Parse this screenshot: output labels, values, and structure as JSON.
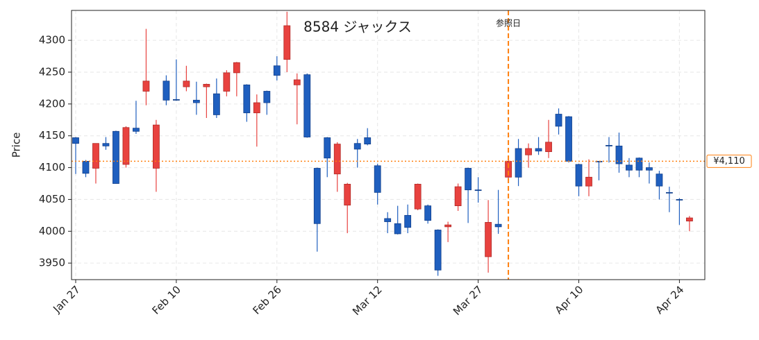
{
  "chart_data": {
    "type": "candlestick",
    "title": "8584  ジャックス",
    "y_label": "Price",
    "categories": [
      "Jan 27",
      null,
      null,
      null,
      null,
      null,
      null,
      null,
      null,
      null,
      "Feb 10",
      null,
      null,
      null,
      null,
      null,
      null,
      null,
      null,
      null,
      "Feb 26",
      null,
      null,
      null,
      null,
      null,
      null,
      null,
      null,
      null,
      "Mar 12",
      null,
      null,
      null,
      null,
      null,
      null,
      null,
      null,
      null,
      "Mar 27",
      null,
      null,
      null,
      null,
      null,
      null,
      null,
      null,
      null,
      "Apr 10",
      null,
      null,
      null,
      null,
      null,
      null,
      null,
      null,
      null,
      "Apr 24",
      null
    ],
    "open": [
      4147,
      4110,
      4099,
      4138,
      4157,
      4105,
      4162,
      4220,
      4099,
      4236,
      4207,
      4227,
      4206,
      4227,
      4216,
      4220,
      4249,
      4230,
      4186,
      4220,
      4260,
      4270,
      4230,
      4246,
      4099,
      4147,
      4090,
      4041,
      4138,
      4147,
      4103,
      4020,
      4012,
      4025,
      4035,
      4040,
      4002,
      4007,
      4040,
      4099,
      4065,
      3960,
      4011,
      4085,
      4130,
      4120,
      4130,
      4125,
      4184,
      4180,
      4105,
      4071,
      4110,
      4135,
      4134,
      4104,
      4115,
      4100,
      4090,
      4061,
      4050,
      4016
    ],
    "high": [
      4148,
      4112,
      4138,
      4148,
      4158,
      4165,
      4205,
      4318,
      4175,
      4245,
      4270,
      4260,
      4235,
      4232,
      4240,
      4253,
      4266,
      4231,
      4215,
      4221,
      4275,
      4345,
      4248,
      4248,
      4100,
      4148,
      4140,
      4076,
      4145,
      4162,
      4106,
      4030,
      4040,
      4042,
      4075,
      4042,
      4003,
      4015,
      4075,
      4100,
      4085,
      4049,
      4065,
      4112,
      4145,
      4138,
      4148,
      4175,
      4193,
      4181,
      4106,
      4113,
      4110,
      4148,
      4155,
      4115,
      4116,
      4108,
      4095,
      4070,
      4052,
      4024
    ],
    "low": [
      4090,
      4085,
      4075,
      4128,
      4075,
      4100,
      4153,
      4198,
      4062,
      4198,
      4205,
      4220,
      4183,
      4178,
      4178,
      4212,
      4212,
      4172,
      4133,
      4183,
      4237,
      4250,
      4168,
      4147,
      3968,
      4085,
      4062,
      3997,
      4100,
      4135,
      4042,
      3997,
      3995,
      3997,
      4033,
      4012,
      3930,
      3983,
      4032,
      4013,
      4045,
      3935,
      3996,
      4082,
      4071,
      4100,
      4120,
      4115,
      4152,
      4108,
      4055,
      4055,
      4080,
      4108,
      4092,
      4085,
      4085,
      4075,
      4050,
      4030,
      4010,
      4000
    ],
    "close": [
      4138,
      4091,
      4138,
      4134,
      4075,
      4163,
      4157,
      4236,
      4167,
      4206,
      4206,
      4236,
      4202,
      4231,
      4183,
      4249,
      4265,
      4186,
      4202,
      4202,
      4245,
      4323,
      4238,
      4148,
      4012,
      4115,
      4137,
      4074,
      4129,
      4137,
      4061,
      4015,
      3996,
      4006,
      4074,
      4017,
      3939,
      4010,
      4070,
      4065,
      4064,
      4014,
      4007,
      4110,
      4085,
      4130,
      4126,
      4140,
      4165,
      4110,
      4071,
      4085,
      4109,
      4134,
      4106,
      4096,
      4096,
      4096,
      4071,
      4060,
      4049,
      4021
    ],
    "up_color": "#e8423f",
    "down_color": "#1f5fbf",
    "ylim": [
      3924,
      4347
    ],
    "yticks": [
      3950,
      4000,
      4050,
      4100,
      4150,
      4200,
      4250,
      4300
    ],
    "grid": true,
    "reference_date": {
      "index": 43,
      "label": "参照日",
      "color": "#ff7f0e"
    },
    "reference_price": {
      "value": 4110,
      "label": "¥4,110",
      "color": "#ff7f0e"
    }
  }
}
